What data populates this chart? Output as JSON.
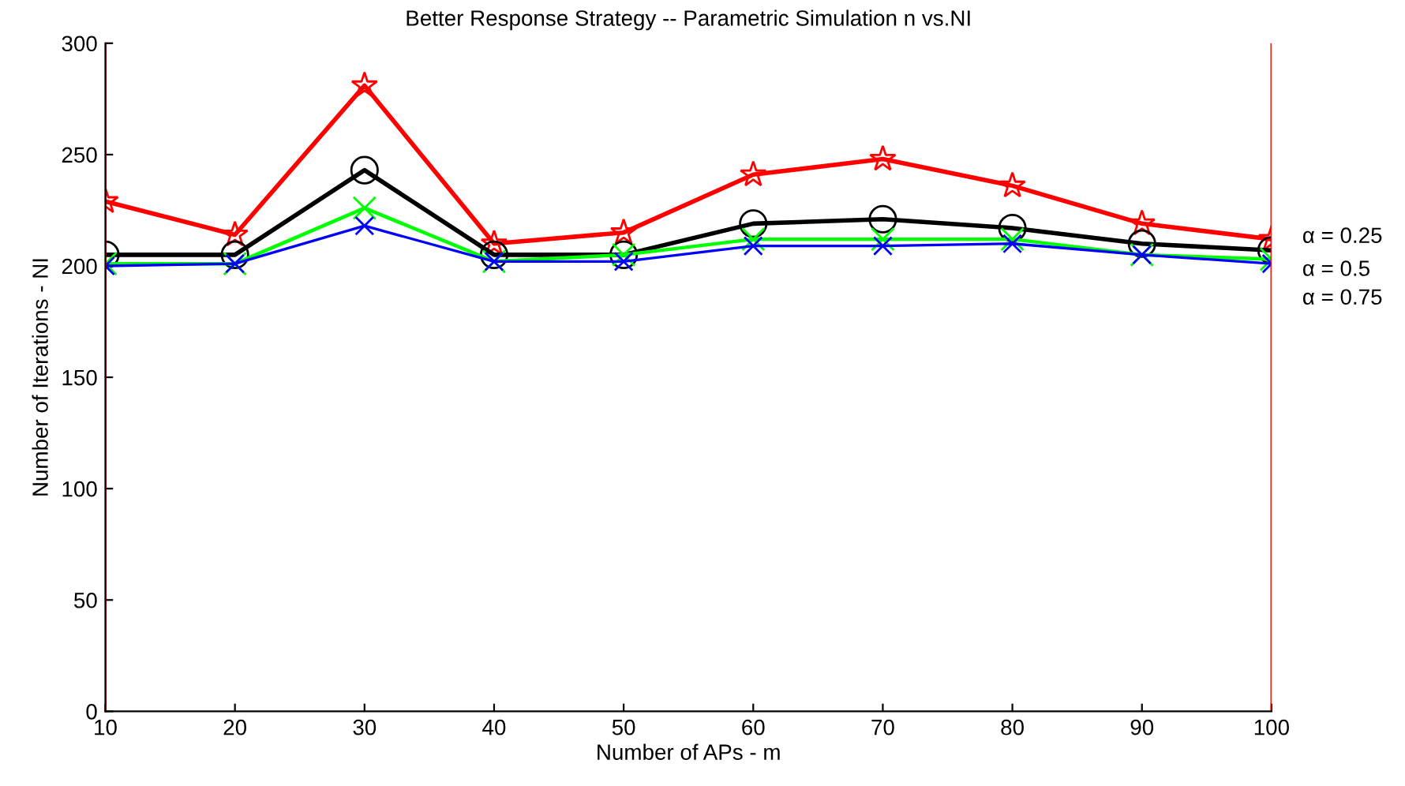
{
  "chart_data": {
    "type": "line",
    "title": "Better Response Strategy -- Parametric Simulation n vs.NI",
    "xlabel": "Number of APs - m",
    "ylabel": "Number of Iterations - NI",
    "x": [
      10,
      20,
      30,
      40,
      50,
      60,
      70,
      80,
      90,
      100
    ],
    "series": [
      {
        "color": "#ff0000",
        "marker": "star",
        "values": [
          229,
          214,
          281,
          210,
          215,
          241,
          248,
          236,
          219,
          212
        ]
      },
      {
        "name": "α = 0.25",
        "color": "#000000",
        "marker": "circle",
        "values": [
          205,
          205,
          243,
          205,
          205,
          219,
          221,
          217,
          210,
          207
        ]
      },
      {
        "name": "α = 0.5",
        "color": "#00ff00",
        "marker": "cross",
        "values": [
          201,
          201,
          226,
          202,
          205,
          212,
          212,
          212,
          205,
          203
        ]
      },
      {
        "name": "α = 0.75",
        "color": "#0000ff",
        "marker": "cross",
        "values": [
          200,
          201,
          218,
          202,
          202,
          209,
          209,
          210,
          205,
          201
        ]
      }
    ],
    "ref_lines": [
      {
        "axis": "x",
        "value": 10,
        "color": "#ff0000"
      },
      {
        "axis": "x",
        "value": 100,
        "color": "#ff0000"
      }
    ],
    "xlim": [
      10,
      100
    ],
    "xticks": [
      10,
      20,
      30,
      40,
      50,
      60,
      70,
      80,
      90,
      100
    ],
    "ylim": [
      0,
      300
    ],
    "yticks": [
      0,
      50,
      100,
      150,
      200,
      250,
      300
    ],
    "grid": false,
    "legend": false
  }
}
